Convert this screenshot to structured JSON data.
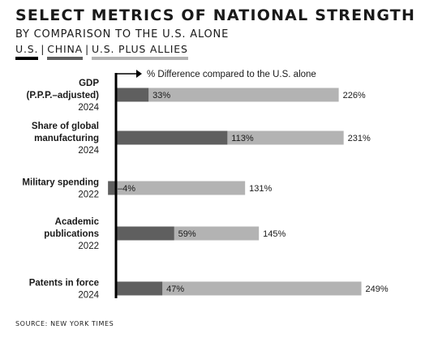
{
  "title": "SELECT METRICS OF NATIONAL STRENGTH",
  "subtitle": "BY COMPARISON TO THE U.S. ALONE",
  "legend": [
    {
      "label": "U.S.",
      "color": "#000000"
    },
    {
      "label": "CHINA",
      "color": "#5f5f5f"
    },
    {
      "label": "U.S. PLUS ALLIES",
      "color": "#b3b3b3"
    }
  ],
  "source": "SOURCE: NEW YORK TIMES",
  "chart_data": {
    "type": "bar",
    "orientation": "horizontal",
    "axis_annotation": "% Difference compared to the U.S. alone",
    "categories": [
      {
        "label": [
          "GDP",
          "(P.P.P.–adjusted)"
        ],
        "year": "2024"
      },
      {
        "label": [
          "Share of global",
          "manufacturing"
        ],
        "year": "2024"
      },
      {
        "label": [
          "Military spending"
        ],
        "year": "2022"
      },
      {
        "label": [
          "Academic",
          "publications"
        ],
        "year": "2022"
      },
      {
        "label": [
          "Patents in force"
        ],
        "year": "2024"
      }
    ],
    "series": [
      {
        "name": "CHINA",
        "color": "#5f5f5f",
        "values": [
          33,
          113,
          -4,
          59,
          47
        ],
        "value_labels": [
          "33%",
          "113%",
          "–4%",
          "59%",
          "47%"
        ]
      },
      {
        "name": "U.S. PLUS ALLIES",
        "color": "#b3b3b3",
        "values": [
          226,
          231,
          131,
          145,
          249
        ],
        "value_labels": [
          "226%",
          "231%",
          "131%",
          "145%",
          "249%"
        ]
      }
    ],
    "xlim": [
      -5,
      265
    ],
    "grid": false
  }
}
